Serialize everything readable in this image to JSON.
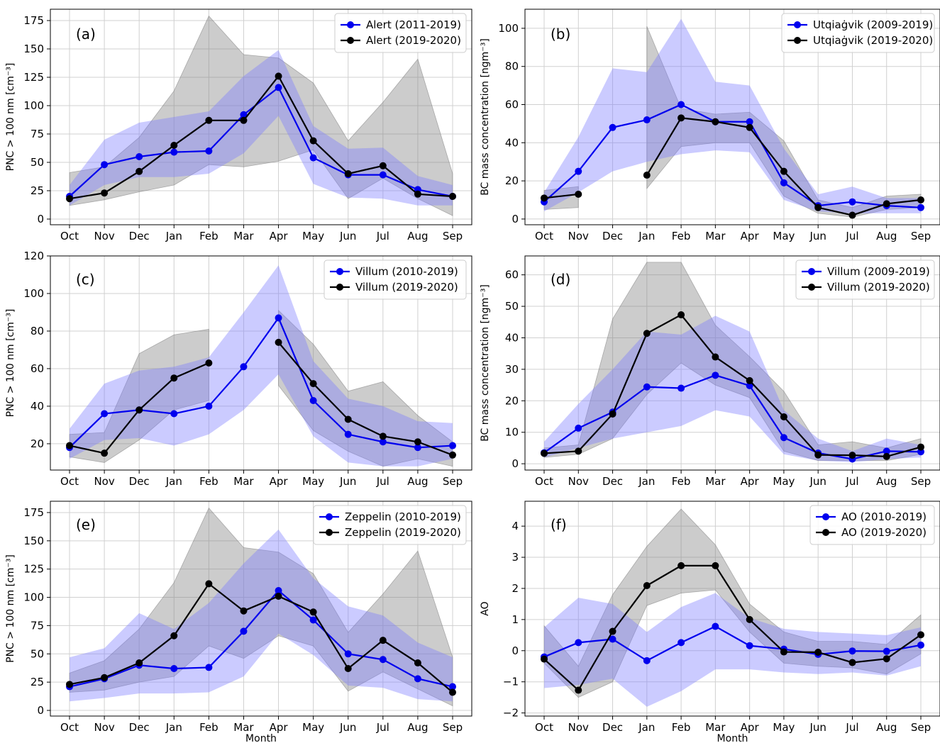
{
  "chart_data": [
    {
      "panel": "(a)",
      "type": "line",
      "categories": [
        "Oct",
        "Nov",
        "Dec",
        "Jan",
        "Feb",
        "Mar",
        "Apr",
        "May",
        "Jun",
        "Jul",
        "Aug",
        "Sep"
      ],
      "ylabel": "PNC > 100 nm [cm⁻³]",
      "xlabel": "",
      "ylim": [
        -5,
        185
      ],
      "yticks": [
        0,
        25,
        50,
        75,
        100,
        125,
        150,
        175
      ],
      "grid": true,
      "legend": "top-right",
      "series": [
        {
          "name": "Alert (2011-2019)",
          "color": "#0000ee",
          "values": [
            20,
            48,
            55,
            59,
            60,
            92,
            116,
            54,
            39,
            39,
            26,
            20
          ],
          "band_low": [
            12,
            30,
            37,
            37,
            40,
            58,
            91,
            31,
            19,
            18,
            12,
            12
          ],
          "band_high": [
            30,
            70,
            85,
            90,
            95,
            126,
            149,
            82,
            62,
            63,
            38,
            30
          ]
        },
        {
          "name": "Alert (2019-2020)",
          "color": "#000000",
          "values": [
            18,
            23,
            42,
            65,
            87,
            87,
            126,
            69,
            40,
            47,
            22,
            20
          ],
          "band_low": [
            12,
            17,
            24,
            30,
            48,
            46,
            51,
            61,
            18,
            36,
            18,
            3
          ],
          "band_high": [
            41,
            46,
            72,
            113,
            179,
            145,
            142,
            120,
            69,
            103,
            141,
            40
          ]
        }
      ]
    },
    {
      "panel": "(b)",
      "type": "line",
      "categories": [
        "Oct",
        "Nov",
        "Dec",
        "Jan",
        "Feb",
        "Mar",
        "Apr",
        "May",
        "Jun",
        "Jul",
        "Aug",
        "Sep"
      ],
      "ylabel": "BC mass concentration [ngm⁻³]",
      "xlabel": "",
      "ylim": [
        -3,
        110
      ],
      "yticks": [
        0,
        20,
        40,
        60,
        80,
        100
      ],
      "grid": true,
      "legend": "top-right",
      "series": [
        {
          "name": "Utqiaġvik (2009-2019)",
          "color": "#0000ee",
          "values": [
            9,
            25,
            48,
            52,
            60,
            51,
            51,
            19,
            7,
            9,
            7,
            6
          ],
          "band_low": [
            4,
            14,
            25,
            30,
            34,
            36,
            35,
            10,
            4,
            3,
            3,
            3
          ],
          "band_high": [
            14,
            43,
            79,
            77,
            105,
            72,
            70,
            37,
            13,
            17,
            11,
            11
          ]
        },
        {
          "name": "Utqiaġvik (2019-2020)",
          "color": "#000000",
          "values": [
            11,
            13,
            null,
            23,
            53,
            51,
            48,
            25,
            6,
            2,
            8,
            10
          ],
          "band_low": [
            5,
            6,
            null,
            16,
            38,
            40,
            40,
            12,
            3,
            1,
            5,
            6
          ],
          "band_high": [
            15,
            17,
            null,
            101,
            58,
            55,
            56,
            41,
            10,
            6,
            12,
            13
          ]
        }
      ]
    },
    {
      "panel": "(c)",
      "type": "line",
      "categories": [
        "Oct",
        "Nov",
        "Dec",
        "Jan",
        "Feb",
        "Mar",
        "Apr",
        "May",
        "Jun",
        "Jul",
        "Aug",
        "Sep"
      ],
      "ylabel": "PNC > 100 nm [cm⁻³]",
      "xlabel": "",
      "ylim": [
        6,
        120
      ],
      "yticks": [
        20,
        40,
        60,
        80,
        100,
        120
      ],
      "grid": true,
      "legend": "top-right",
      "series": [
        {
          "name": "Villum (2010-2019)",
          "color": "#0000ee",
          "values": [
            18,
            36,
            38,
            36,
            40,
            61,
            87,
            43,
            25,
            21,
            18,
            19
          ],
          "band_low": [
            12,
            22,
            23,
            19,
            25,
            38,
            57,
            24,
            10,
            8,
            8,
            12
          ],
          "band_high": [
            28,
            52,
            59,
            61,
            66,
            90,
            115,
            64,
            44,
            40,
            32,
            31
          ]
        },
        {
          "name": "Villum (2019-2020)",
          "color": "#000000",
          "values": [
            19,
            15,
            38,
            55,
            63,
            null,
            74,
            52,
            33,
            24,
            21,
            14
          ],
          "band_low": [
            13,
            10,
            22,
            38,
            43,
            null,
            51,
            27,
            16,
            8,
            12,
            8
          ],
          "band_high": [
            25,
            26,
            68,
            78,
            81,
            null,
            91,
            73,
            48,
            53,
            35,
            21
          ]
        }
      ]
    },
    {
      "panel": "(d)",
      "type": "line",
      "categories": [
        "Oct",
        "Nov",
        "Dec",
        "Jan",
        "Feb",
        "Mar",
        "Apr",
        "May",
        "Jun",
        "Jul",
        "Aug",
        "Sep"
      ],
      "ylabel": "BC mass concentration [ngm⁻³]",
      "xlabel": "",
      "ylim": [
        -2,
        66
      ],
      "yticks": [
        0,
        10,
        20,
        30,
        40,
        50,
        60
      ],
      "grid": true,
      "legend": "top-right",
      "series": [
        {
          "name": "Villum (2009-2019)",
          "color": "#0000ee",
          "values": [
            3.5,
            11.3,
            16.4,
            24.4,
            24.0,
            28.1,
            24.8,
            8.3,
            3.4,
            1.5,
            4.0,
            3.8
          ],
          "band_low": [
            2,
            5,
            8,
            10,
            12,
            17,
            15,
            3,
            1,
            0.5,
            1.5,
            2
          ],
          "band_high": [
            7,
            19,
            30,
            42,
            41,
            47,
            42,
            17,
            8,
            4,
            8,
            6
          ]
        },
        {
          "name": "Villum (2019-2020)",
          "color": "#000000",
          "values": [
            3.3,
            4.0,
            15.8,
            41.4,
            47.3,
            33.9,
            26.4,
            14.9,
            2.8,
            2.7,
            2.3,
            5.3
          ],
          "band_low": [
            2,
            3,
            8,
            22,
            32,
            25,
            21,
            4,
            1,
            1,
            1,
            3
          ],
          "band_high": [
            5,
            6,
            46,
            64,
            64,
            44,
            34,
            23,
            6,
            7,
            5,
            8
          ]
        }
      ]
    },
    {
      "panel": "(e)",
      "type": "line",
      "categories": [
        "Oct",
        "Nov",
        "Dec",
        "Jan",
        "Feb",
        "Mar",
        "Apr",
        "May",
        "Jun",
        "Jul",
        "Aug",
        "Sep"
      ],
      "ylabel": "PNC > 100 nm [cm⁻³]",
      "xlabel": "Month",
      "ylim": [
        -5,
        185
      ],
      "yticks": [
        0,
        25,
        50,
        75,
        100,
        125,
        150,
        175
      ],
      "grid": true,
      "legend": "top-right",
      "series": [
        {
          "name": "Zeppelin (2010-2019)",
          "color": "#0000ee",
          "values": [
            21,
            28,
            40,
            37,
            38,
            70,
            106,
            80,
            50,
            45,
            28,
            21
          ],
          "band_low": [
            8,
            11,
            15,
            15,
            16,
            30,
            68,
            49,
            22,
            20,
            10,
            8
          ],
          "band_high": [
            47,
            55,
            86,
            72,
            95,
            130,
            160,
            117,
            92,
            84,
            60,
            47
          ]
        },
        {
          "name": "Zeppelin (2019-2020)",
          "color": "#000000",
          "values": [
            23,
            29,
            42,
            66,
            112,
            88,
            101,
            87,
            37,
            62,
            42,
            16
          ],
          "band_low": [
            16,
            18,
            25,
            30,
            57,
            46,
            66,
            57,
            17,
            34,
            19,
            4
          ],
          "band_high": [
            33,
            44,
            72,
            113,
            179,
            144,
            140,
            121,
            69,
            103,
            141,
            47
          ]
        }
      ]
    },
    {
      "panel": "(f)",
      "type": "line",
      "categories": [
        "Oct",
        "Nov",
        "Dec",
        "Jan",
        "Feb",
        "Mar",
        "Apr",
        "May",
        "Jun",
        "Jul",
        "Aug",
        "Sep"
      ],
      "ylabel": "AO",
      "xlabel": "Month",
      "ylim": [
        -2.1,
        4.8
      ],
      "yticks": [
        -2,
        -1,
        0,
        1,
        2,
        3,
        4
      ],
      "grid": true,
      "legend": "top-right",
      "series": [
        {
          "name": "AO (2010-2019)",
          "color": "#0000ee",
          "values": [
            -0.2,
            0.26,
            0.37,
            -0.32,
            0.26,
            0.78,
            0.16,
            0.05,
            -0.12,
            -0.01,
            -0.02,
            0.18
          ],
          "band_low": [
            -1.2,
            -1.1,
            -0.9,
            -1.8,
            -1.3,
            -0.6,
            -0.6,
            -0.7,
            -0.75,
            -0.7,
            -0.8,
            -0.5
          ],
          "band_high": [
            0.75,
            1.7,
            1.5,
            0.6,
            1.4,
            1.85,
            1.05,
            0.7,
            0.6,
            0.55,
            0.5,
            0.75
          ]
        },
        {
          "name": "AO (2019-2020)",
          "color": "#000000",
          "values": [
            -0.27,
            -1.27,
            0.62,
            2.09,
            2.73,
            2.73,
            1.0,
            -0.04,
            -0.05,
            -0.38,
            -0.26,
            0.51
          ],
          "band_low": [
            -0.4,
            -1.5,
            -1.0,
            1.45,
            1.85,
            1.95,
            0.6,
            -0.4,
            -0.5,
            -0.55,
            -0.75,
            -0.1
          ],
          "band_high": [
            0.8,
            -0.5,
            1.8,
            3.35,
            4.55,
            3.4,
            1.5,
            0.6,
            0.3,
            0.3,
            0.2,
            1.15
          ]
        }
      ]
    }
  ],
  "colors": {
    "blue_line": "#0000ee",
    "black_line": "#000000",
    "blue_band": "#7d7dff",
    "grey_band": "#808080"
  }
}
